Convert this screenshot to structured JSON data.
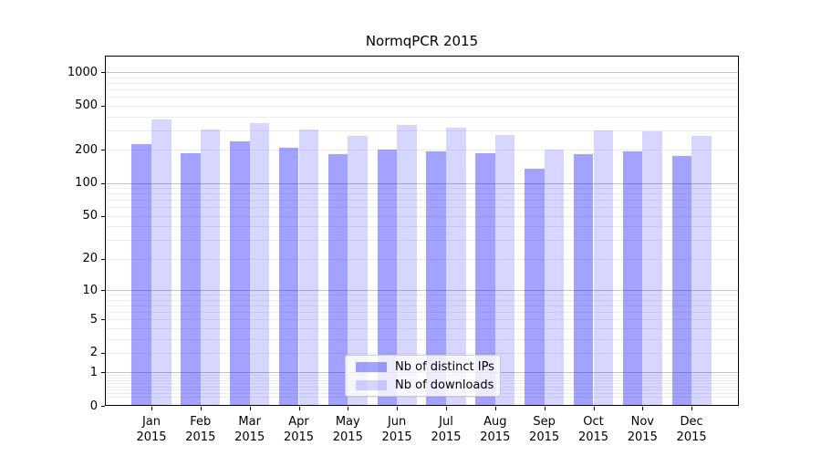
{
  "title": "NormqPCR 2015",
  "chart_data": {
    "type": "bar",
    "title": "NormqPCR 2015",
    "categories": [
      "Jan",
      "Feb",
      "Mar",
      "Apr",
      "May",
      "Jun",
      "Jul",
      "Aug",
      "Sep",
      "Oct",
      "Nov",
      "Dec"
    ],
    "year": "2015",
    "series": [
      {
        "name": "Nb of distinct IPs",
        "color": "rgba(0,0,255,0.36)",
        "values": [
          225,
          186,
          239,
          207,
          183,
          201,
          192,
          186,
          135,
          183,
          192,
          177
        ]
      },
      {
        "name": "Nb of downloads",
        "color": "rgba(0,0,255,0.16)",
        "values": [
          371,
          306,
          347,
          306,
          268,
          334,
          318,
          272,
          200,
          301,
          292,
          267
        ]
      }
    ],
    "y_ticks": [
      1000,
      500,
      200,
      100,
      50,
      20,
      10,
      5,
      2,
      1,
      0
    ],
    "y_scale": "log10(value+1)",
    "ylim": [
      0,
      1400
    ],
    "grid": true,
    "legend_position": "lower center",
    "colors": {
      "bar_dark": "rgba(0,0,255,0.36)",
      "bar_light": "rgba(0,0,255,0.16)",
      "major_grid": "#c2c2c2",
      "minor_grid": "#ededed",
      "spine": "#000000"
    }
  }
}
